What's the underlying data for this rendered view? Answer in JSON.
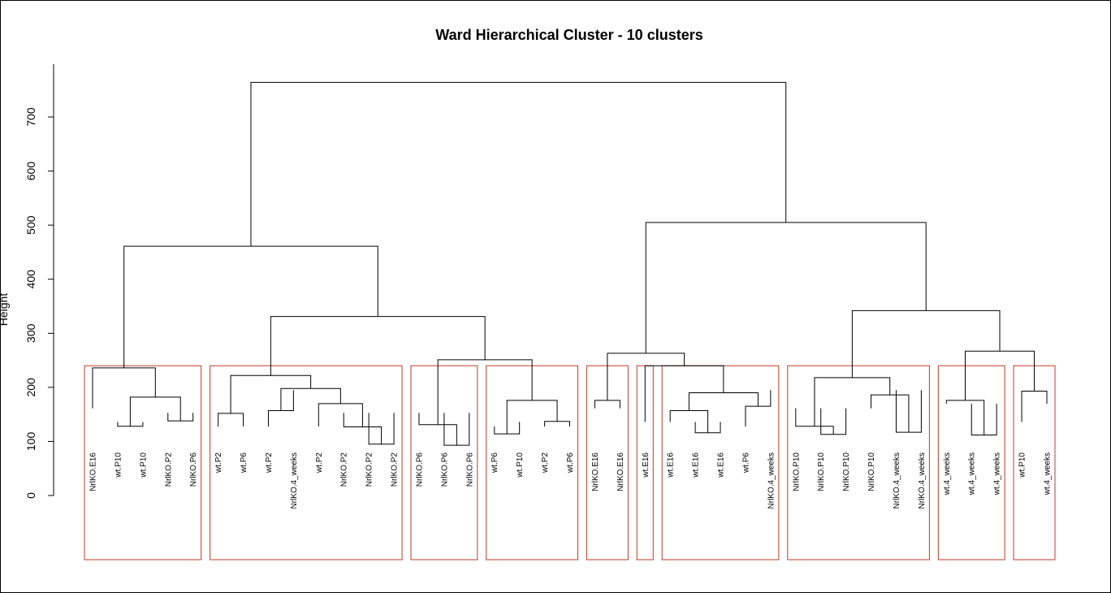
{
  "chart_data": {
    "type": "dendrogram",
    "title": "Ward Hierarchical Cluster - 10 clusters",
    "ylabel": "Height",
    "ylim": [
      0,
      800
    ],
    "yticks": [
      0,
      100,
      200,
      300,
      400,
      500,
      600,
      700
    ],
    "cut_height": 240,
    "cluster_box_color": "#c0392b",
    "leaves": [
      "NrlKO.E16",
      "wt.P10",
      "wt.P10",
      "NrlKO.P2",
      "NrlKO.P6",
      "wt.P2",
      "wt.P6",
      "wt.P2",
      "NrlKO.4_weeks",
      "wt.P2",
      "NrlKO.P2",
      "NrlKO.P2",
      "NrlKO.P2",
      "NrlKO.P6",
      "NrlKO.P6",
      "NrlKO.P6",
      "wt.P6",
      "wt.P10",
      "wt.P2",
      "wt.P6",
      "NrlKO.E16",
      "NrlKO.E16",
      "wt.E16",
      "wt.E16",
      "wt.E16",
      "wt.E16",
      "wt.P6",
      "NrlKO.4_weeks",
      "NrlKO.P10",
      "NrlKO.P10",
      "NrlKO.P10",
      "NrlKO.P10",
      "NrlKO.4_weeks",
      "NrlKO.4_weeks",
      "wt.4_weeks",
      "wt.4_weeks",
      "wt.4_weeks",
      "wt.P10",
      "wt.4_weeks"
    ],
    "merges": [
      {
        "left": 1,
        "right": 2,
        "height": 128
      },
      {
        "left": 3,
        "right": 4,
        "height": 138
      },
      {
        "left": "m0",
        "right": "m1",
        "height": 182
      },
      {
        "left": 0,
        "right": "m2",
        "height": 236
      },
      {
        "left": 5,
        "right": 6,
        "height": 152
      },
      {
        "left": 7,
        "right": 8,
        "height": 157
      },
      {
        "left": 11,
        "right": 12,
        "height": 95
      },
      {
        "left": 10,
        "right": "m6",
        "height": 127
      },
      {
        "left": 9,
        "right": "m7",
        "height": 170
      },
      {
        "left": "m5",
        "right": "m8",
        "height": 198
      },
      {
        "left": "m4",
        "right": "m9",
        "height": 222
      },
      {
        "left": 14,
        "right": 15,
        "height": 93
      },
      {
        "left": 13,
        "right": "m11",
        "height": 131
      },
      {
        "left": 16,
        "right": 17,
        "height": 114
      },
      {
        "left": 18,
        "right": 19,
        "height": 137
      },
      {
        "left": "m13",
        "right": "m14",
        "height": 176
      },
      {
        "left": "m12",
        "right": "m15",
        "height": 251
      },
      {
        "left": "m10",
        "right": "m16",
        "height": 331
      },
      {
        "left": "m3",
        "right": "m17",
        "height": 461
      },
      {
        "left": 20,
        "right": 21,
        "height": 176
      },
      {
        "left": 24,
        "right": 25,
        "height": 116
      },
      {
        "left": 23,
        "right": "m20",
        "height": 157
      },
      {
        "left": 26,
        "right": 27,
        "height": 165
      },
      {
        "left": "m21",
        "right": "m22",
        "height": 190
      },
      {
        "left": 22,
        "right": "m23",
        "height": 240
      },
      {
        "left": "m19",
        "right": "m24",
        "height": 263
      },
      {
        "left": 29,
        "right": 30,
        "height": 113
      },
      {
        "left": 28,
        "right": "m26",
        "height": 128
      },
      {
        "left": 32,
        "right": 33,
        "height": 117
      },
      {
        "left": 31,
        "right": "m28",
        "height": 186
      },
      {
        "left": "m27",
        "right": "m29",
        "height": 218
      },
      {
        "left": 35,
        "right": 36,
        "height": 112
      },
      {
        "left": 34,
        "right": "m31",
        "height": 176
      },
      {
        "left": 37,
        "right": 38,
        "height": 193
      },
      {
        "left": "m32",
        "right": "m33",
        "height": 267
      },
      {
        "left": "m30",
        "right": "m34",
        "height": 342
      },
      {
        "left": "m25",
        "right": "m35",
        "height": 505
      },
      {
        "left": "m18",
        "right": "m36",
        "height": 764
      }
    ],
    "clusters": [
      {
        "first": 0,
        "last": 4
      },
      {
        "first": 5,
        "last": 12
      },
      {
        "first": 13,
        "last": 15
      },
      {
        "first": 16,
        "last": 19
      },
      {
        "first": 20,
        "last": 21
      },
      {
        "first": 22,
        "last": 22
      },
      {
        "first": 23,
        "last": 27
      },
      {
        "first": 28,
        "last": 33
      },
      {
        "first": 34,
        "last": 36
      },
      {
        "first": 37,
        "last": 38
      }
    ]
  }
}
